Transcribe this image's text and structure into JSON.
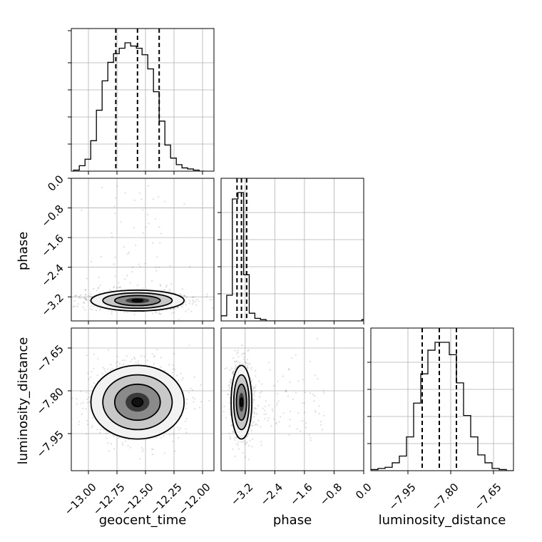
{
  "chart_data": {
    "type": "corner",
    "parameters": [
      "geocent_time",
      "phase",
      "luminosity_distance"
    ],
    "axis_labels": {
      "x": [
        "geocent_time",
        "phase",
        "luminosity_distance"
      ],
      "y": [
        "phase",
        "luminosity_distance"
      ]
    },
    "ranges": {
      "geocent_time": [
        -13.15,
        -11.9
      ],
      "phase": [
        -3.85,
        0.0
      ],
      "luminosity_distance": [
        -8.08,
        -7.58
      ]
    },
    "ticks": {
      "geocent_time": {
        "values": [
          -13.0,
          -12.75,
          -12.5,
          -12.25,
          -12.0
        ],
        "labels": [
          "−13.00",
          "−12.75",
          "−12.50",
          "−12.25",
          "−12.00"
        ]
      },
      "phase": {
        "values": [
          -3.2,
          -2.4,
          -1.6,
          -0.8,
          0.0
        ],
        "labels": [
          "−3.2",
          "−2.4",
          "−1.6",
          "−0.8",
          "0.0"
        ]
      },
      "luminosity_distance": {
        "values": [
          -7.95,
          -7.8,
          -7.65
        ],
        "labels": [
          "−7.95",
          "−7.80",
          "−7.65"
        ]
      }
    },
    "quantiles": {
      "geocent_time": [
        -12.76,
        -12.57,
        -12.38
      ],
      "phase": [
        -3.42,
        -3.3,
        -3.16
      ],
      "luminosity_distance": [
        -7.9,
        -7.84,
        -7.78
      ]
    },
    "histograms": {
      "geocent_time": {
        "edges_start": -13.13,
        "bin_width": 0.05,
        "counts": [
          1,
          5,
          11,
          28,
          56,
          83,
          100,
          108,
          113,
          118,
          115,
          113,
          107,
          94,
          73,
          46,
          24,
          12,
          6,
          3,
          2,
          1,
          0
        ]
      },
      "phase": {
        "edges_start": -3.85,
        "bin_width": 0.152,
        "counts": [
          4,
          20,
          95,
          100,
          36,
          6,
          2,
          1,
          0,
          0,
          0,
          0,
          0,
          0,
          0,
          0,
          0,
          0,
          0,
          0,
          0,
          0,
          0,
          0,
          0,
          1
        ]
      },
      "luminosity_distance": {
        "edges_start": -8.08,
        "bin_width": 0.025,
        "counts": [
          1,
          2,
          3,
          7,
          13,
          30,
          60,
          86,
          107,
          114,
          114,
          103,
          78,
          49,
          30,
          14,
          7,
          2,
          1,
          0
        ]
      }
    },
    "grid": true,
    "sample_color": "#000000"
  }
}
